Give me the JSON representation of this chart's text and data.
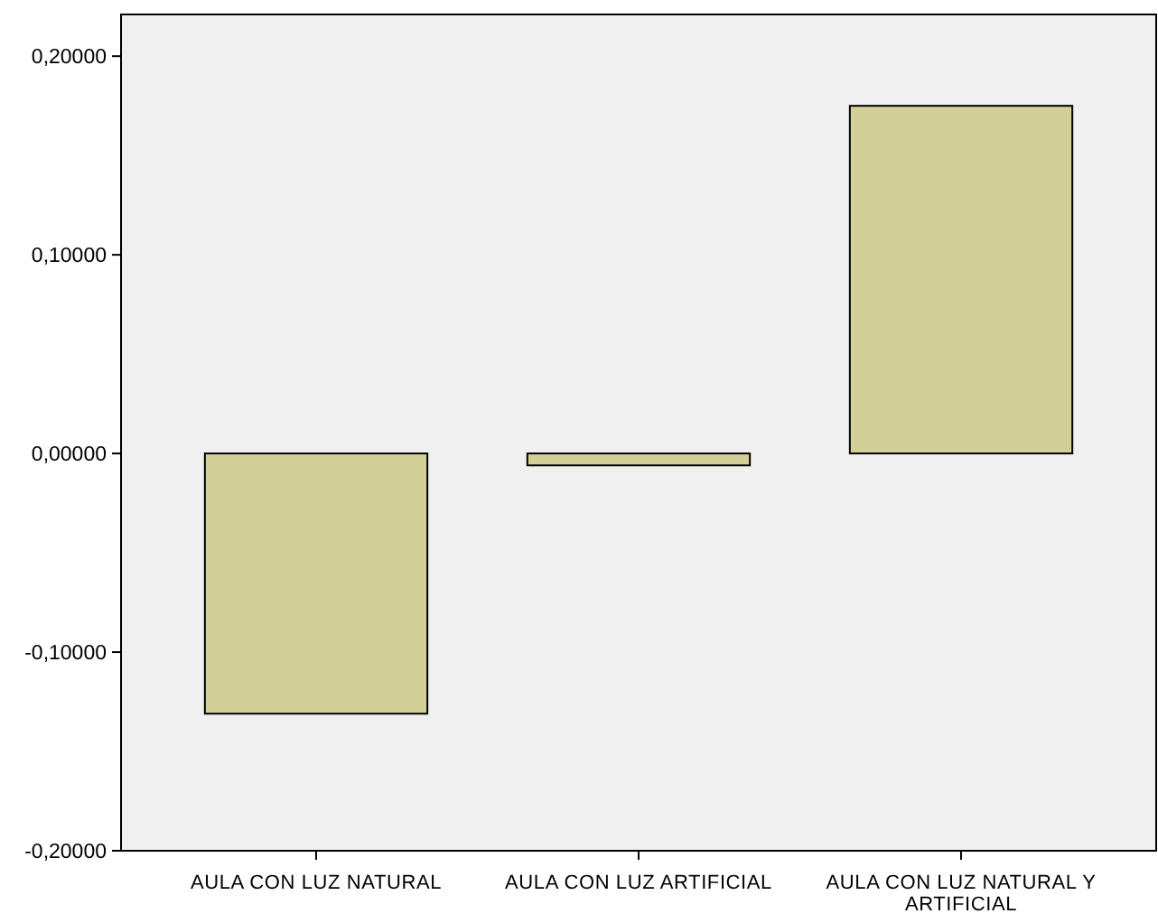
{
  "chart_data": {
    "type": "bar",
    "categories": [
      "AULA CON LUZ NATURAL",
      "AULA CON LUZ ARTIFICIAL",
      "AULA CON LUZ NATURAL Y ARTIFICIAL"
    ],
    "values": [
      -0.131,
      -0.006,
      0.175
    ],
    "color": "#d3cf98",
    "ylim": [
      -0.2,
      0.221
    ],
    "yticks": [
      {
        "value": -0.2,
        "label": "-0,20000"
      },
      {
        "value": -0.1,
        "label": "-0,10000"
      },
      {
        "value": 0,
        "label": "0,00000"
      },
      {
        "value": 0.1,
        "label": "0,10000"
      },
      {
        "value": 0.2,
        "label": "0,20000"
      }
    ],
    "grid": false
  }
}
